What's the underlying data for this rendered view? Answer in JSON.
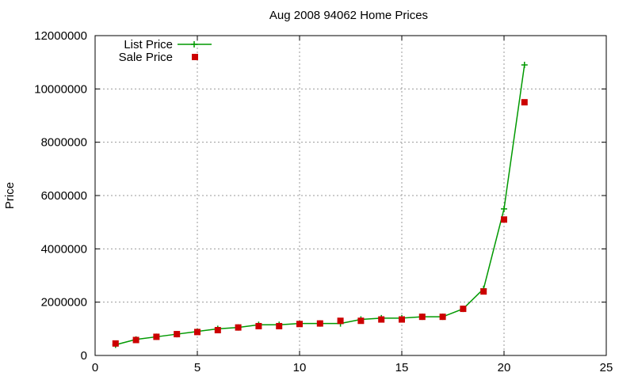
{
  "chart_data": {
    "type": "line",
    "title": "Aug 2008 94062 Home Prices",
    "xlabel": "",
    "ylabel": "Price",
    "xlim": [
      0,
      25
    ],
    "ylim": [
      0,
      12000000
    ],
    "x_ticks": [
      0,
      5,
      10,
      15,
      20,
      25
    ],
    "y_ticks": [
      0,
      2000000,
      4000000,
      6000000,
      8000000,
      10000000,
      12000000
    ],
    "grid": true,
    "legend_position": "top-left",
    "series": [
      {
        "name": "List Price",
        "style": "line-with-plus-markers",
        "color": "#009900",
        "x": [
          1,
          2,
          3,
          4,
          5,
          6,
          7,
          8,
          9,
          10,
          11,
          12,
          13,
          14,
          15,
          16,
          17,
          18,
          19,
          20,
          21
        ],
        "y": [
          400000,
          600000,
          700000,
          800000,
          900000,
          1000000,
          1050000,
          1150000,
          1150000,
          1200000,
          1200000,
          1200000,
          1350000,
          1400000,
          1400000,
          1450000,
          1450000,
          1750000,
          2500000,
          5500000,
          10900000
        ]
      },
      {
        "name": "Sale Price",
        "style": "square-markers",
        "color": "#cc0000",
        "x": [
          1,
          2,
          3,
          4,
          5,
          6,
          7,
          8,
          9,
          10,
          11,
          12,
          13,
          14,
          15,
          16,
          17,
          18,
          19,
          20,
          21
        ],
        "y": [
          450000,
          580000,
          700000,
          800000,
          880000,
          950000,
          1050000,
          1100000,
          1100000,
          1180000,
          1200000,
          1300000,
          1300000,
          1350000,
          1350000,
          1450000,
          1450000,
          1750000,
          2400000,
          5100000,
          9500000
        ]
      }
    ]
  }
}
